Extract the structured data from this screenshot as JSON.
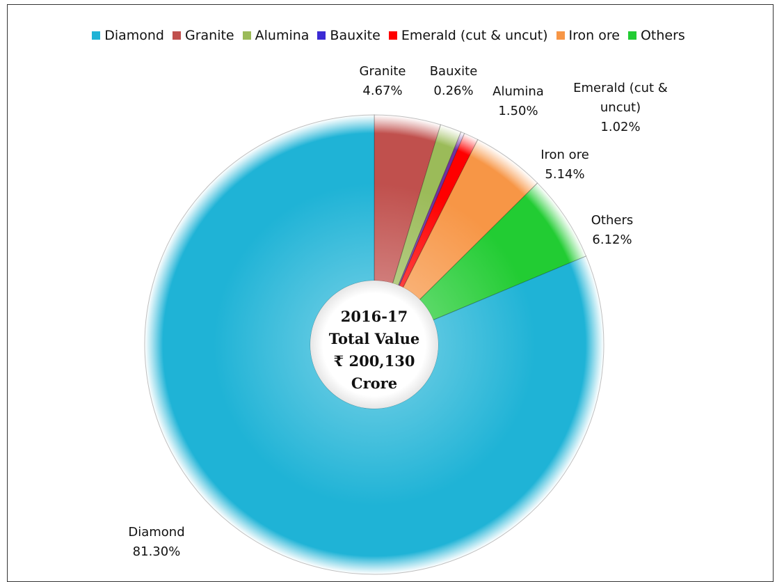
{
  "chart_data": {
    "type": "pie",
    "style": "doughnut",
    "legend_position": "top",
    "center_label": [
      "2016-17",
      "Total Value",
      "₹ 200,130",
      "Crore"
    ],
    "slices": [
      {
        "name": "Granite",
        "value": 4.67,
        "value_label": "4.67%",
        "color": "#c0504d",
        "label_lines": [
          "Granite"
        ]
      },
      {
        "name": "Alumina",
        "value": 1.5,
        "value_label": "1.50%",
        "color": "#9bbb59",
        "label_lines": [
          "Alumina"
        ]
      },
      {
        "name": "Bauxite",
        "value": 0.26,
        "value_label": "0.26%",
        "color": "#7030a0",
        "label_lines": [
          "Bauxite"
        ]
      },
      {
        "name": "Emerald (cut & uncut)",
        "value": 1.02,
        "value_label": "1.02%",
        "color": "#ff0000",
        "label_lines": [
          "Emerald (cut &",
          "uncut)"
        ]
      },
      {
        "name": "Iron ore",
        "value": 5.14,
        "value_label": "5.14%",
        "color": "#f79646",
        "label_lines": [
          "Iron ore"
        ]
      },
      {
        "name": "Others",
        "value": 6.12,
        "value_label": "6.12%",
        "color": "#22cc33",
        "label_lines": [
          "Others"
        ]
      },
      {
        "name": "Diamond",
        "value": 81.3,
        "value_label": "81.30%",
        "color": "#1fb3d6",
        "label_lines": [
          "Diamond"
        ]
      }
    ],
    "legend": [
      {
        "name": "Diamond",
        "color": "#1fb3d6"
      },
      {
        "name": "Granite",
        "color": "#c0504d"
      },
      {
        "name": "Alumina",
        "color": "#9bbb59"
      },
      {
        "name": "Bauxite",
        "color": "#3b2bd4"
      },
      {
        "name": "Emerald (cut & uncut)",
        "color": "#ff0000"
      },
      {
        "name": "Iron ore",
        "color": "#f79646"
      },
      {
        "name": "Others",
        "color": "#22cc33"
      }
    ]
  }
}
